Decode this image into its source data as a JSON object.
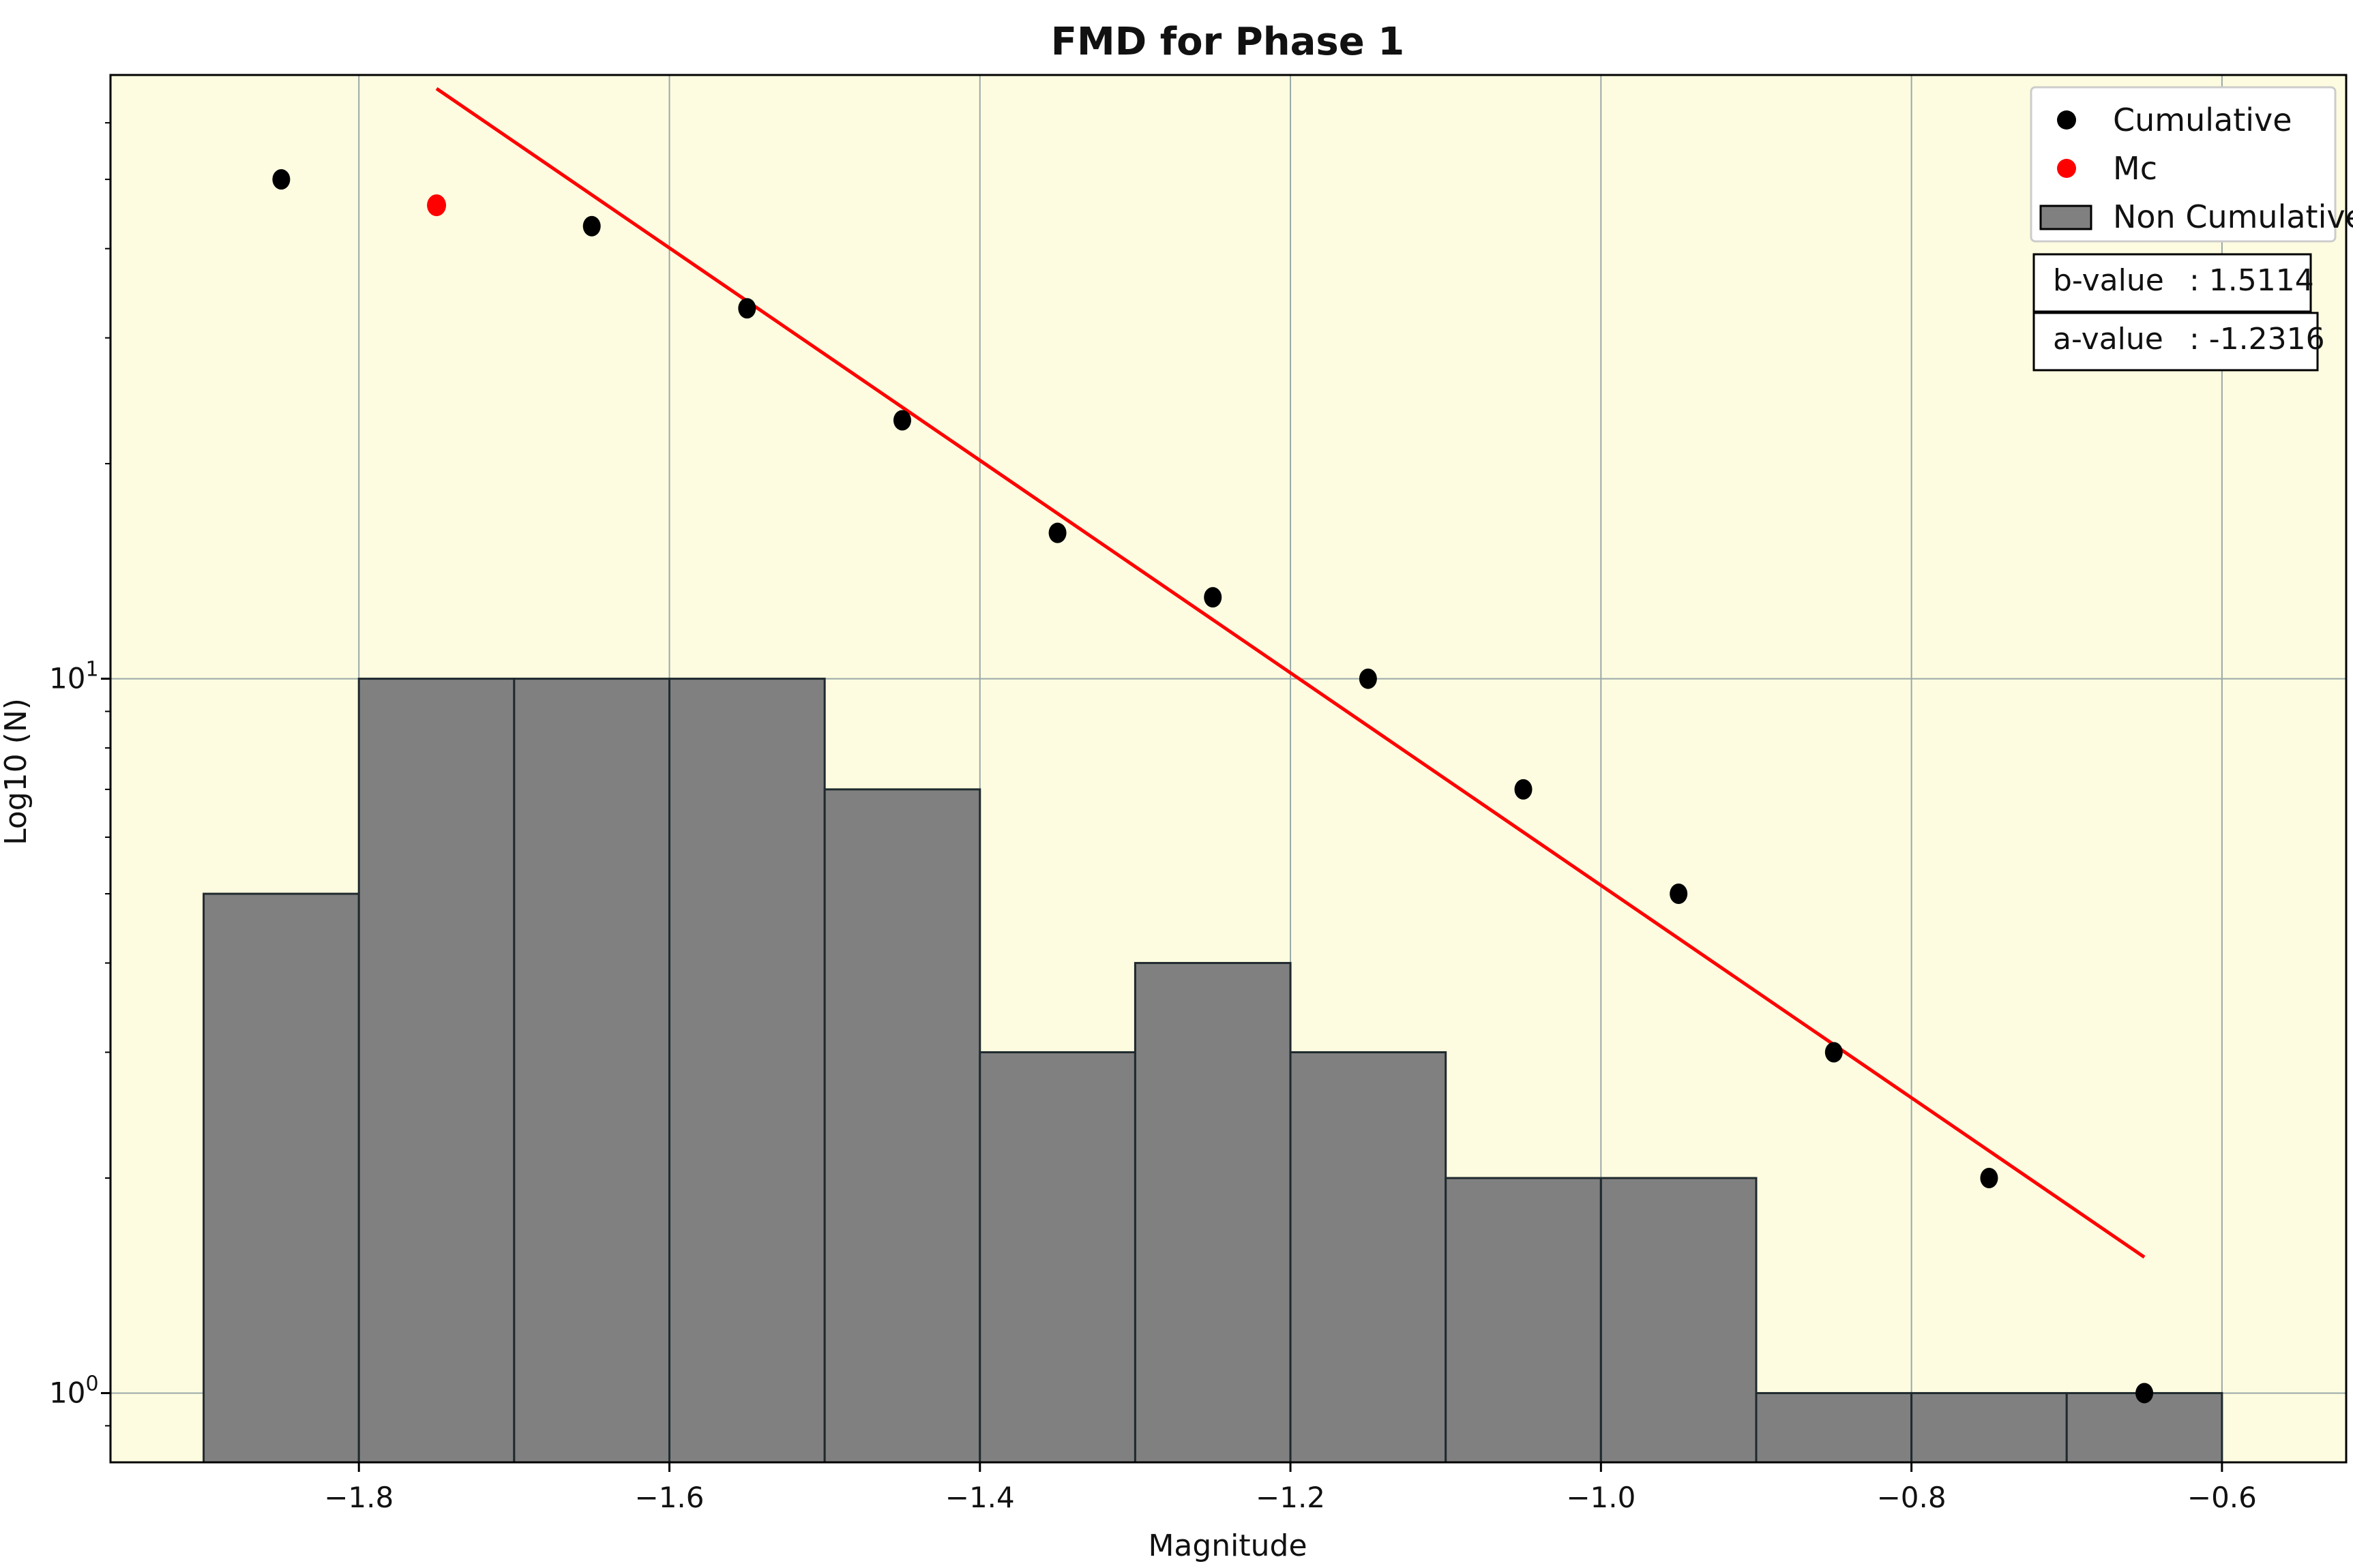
{
  "chart_data": {
    "type": "bar",
    "title": "FMD for Phase 1",
    "xlabel": "Magnitude",
    "ylabel": "Log10 (N)",
    "xlim": [
      -1.96,
      -0.52
    ],
    "ylim": [
      0.8,
      70
    ],
    "yscale": "log",
    "grid": true,
    "legend_position": "top-right",
    "x_ticks": [
      {
        "value": -1.8,
        "label": "−1.8"
      },
      {
        "value": -1.6,
        "label": "−1.6"
      },
      {
        "value": -1.4,
        "label": "−1.4"
      },
      {
        "value": -1.2,
        "label": "−1.2"
      },
      {
        "value": -1.0,
        "label": "−1.0"
      },
      {
        "value": -0.8,
        "label": "−0.8"
      },
      {
        "value": -0.6,
        "label": "−0.6"
      }
    ],
    "y_ticks": [
      {
        "value": 1,
        "base": "10",
        "exp": "0"
      },
      {
        "value": 10,
        "base": "10",
        "exp": "1"
      }
    ],
    "y_minor_ticks": [
      0.9,
      2,
      3,
      4,
      5,
      6,
      7,
      8,
      9,
      20,
      30,
      40,
      50,
      60
    ],
    "non_cumulative": {
      "name": "Non Cumulative",
      "color": "#808080",
      "bins": [
        {
          "x0": -1.9,
          "x1": -1.8,
          "count": 5
        },
        {
          "x0": -1.8,
          "x1": -1.7,
          "count": 10
        },
        {
          "x0": -1.7,
          "x1": -1.6,
          "count": 10
        },
        {
          "x0": -1.6,
          "x1": -1.5,
          "count": 10
        },
        {
          "x0": -1.5,
          "x1": -1.4,
          "count": 7
        },
        {
          "x0": -1.4,
          "x1": -1.3,
          "count": 3
        },
        {
          "x0": -1.3,
          "x1": -1.2,
          "count": 4
        },
        {
          "x0": -1.2,
          "x1": -1.1,
          "count": 3
        },
        {
          "x0": -1.1,
          "x1": -1.0,
          "count": 2
        },
        {
          "x0": -1.0,
          "x1": -0.9,
          "count": 2
        },
        {
          "x0": -0.9,
          "x1": -0.8,
          "count": 1
        },
        {
          "x0": -0.8,
          "x1": -0.7,
          "count": 1
        },
        {
          "x0": -0.7,
          "x1": -0.6,
          "count": 1
        }
      ]
    },
    "cumulative": {
      "name": "Cumulative",
      "color": "#000000",
      "points": [
        {
          "x": -1.85,
          "y": 50
        },
        {
          "x": -1.65,
          "y": 43
        },
        {
          "x": -1.55,
          "y": 33
        },
        {
          "x": -1.45,
          "y": 23
        },
        {
          "x": -1.35,
          "y": 16
        },
        {
          "x": -1.25,
          "y": 13
        },
        {
          "x": -1.15,
          "y": 10
        },
        {
          "x": -1.05,
          "y": 7
        },
        {
          "x": -0.95,
          "y": 5
        },
        {
          "x": -0.85,
          "y": 3
        },
        {
          "x": -0.75,
          "y": 2
        },
        {
          "x": -0.65,
          "y": 1
        }
      ]
    },
    "mc": {
      "name": "Mc",
      "color": "#ff0000",
      "point": {
        "x": -1.75,
        "y": 46
      }
    },
    "fit_line": {
      "color": "#ff0000",
      "x_start": -1.75,
      "x_end": -0.65,
      "y_start": 67,
      "y_end": 1.55
    },
    "stats": [
      {
        "label": "b-value",
        "value": ": 1.5114"
      },
      {
        "label": "a-value",
        "value": ": -1.2316"
      }
    ],
    "colors": {
      "plot_background": "#fefce0",
      "grid": "#9aa8a8",
      "bar_edge": "#1f2a2e"
    }
  }
}
